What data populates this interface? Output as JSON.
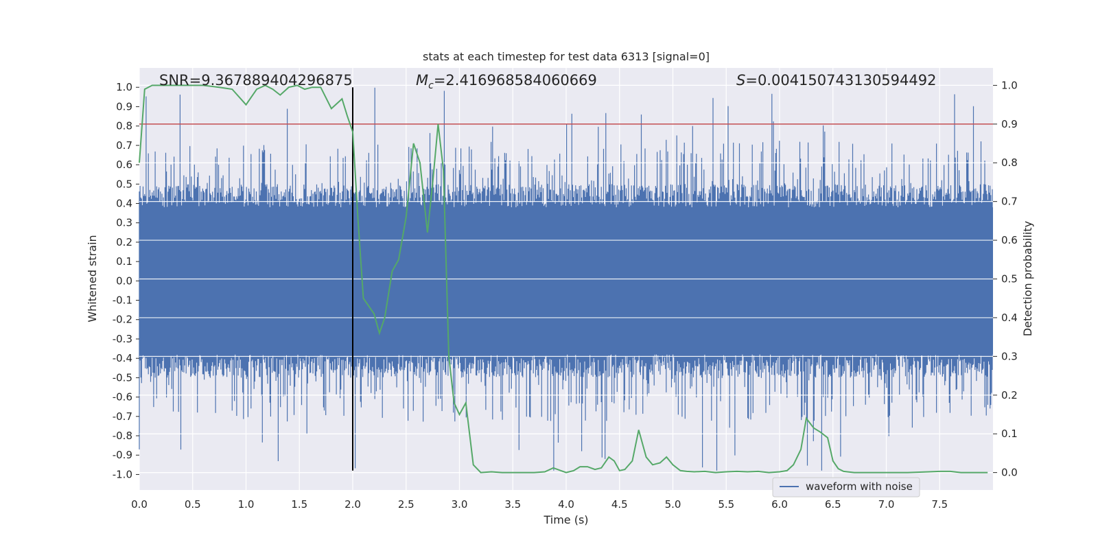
{
  "chart_data": {
    "type": "line",
    "title": "stats at each timestep for test data 6313 [signal=0]",
    "xlabel": "Time (s)",
    "ylabel": "Whitened strain",
    "y2label": "Detection probability",
    "xlim": [
      0,
      8.0
    ],
    "ylim": [
      -1.08,
      1.1
    ],
    "y2lim": [
      -0.045,
      1.045
    ],
    "xticks": [
      "0.0",
      "0.5",
      "1.0",
      "1.5",
      "2.0",
      "2.5",
      "3.0",
      "3.5",
      "4.0",
      "4.5",
      "5.0",
      "5.5",
      "6.0",
      "6.5",
      "7.0",
      "7.5"
    ],
    "yticks": [
      "1.0",
      "0.9",
      "0.8",
      "0.7",
      "0.6",
      "0.5",
      "0.4",
      "0.3",
      "0.2",
      "0.1",
      "0.0",
      "-0.1",
      "-0.2",
      "-0.3",
      "-0.4",
      "-0.5",
      "-0.6",
      "-0.7",
      "-0.8",
      "-0.9",
      "-1.0"
    ],
    "y2ticks": [
      "1.0",
      "0.9",
      "0.8",
      "0.7",
      "0.6",
      "0.5",
      "0.4",
      "0.3",
      "0.2",
      "0.1",
      "0.0"
    ],
    "annotations": {
      "snr": "SNR=9.367889404296875",
      "mc_symbol": "M",
      "mc_sub": "c",
      "mc_value": "=2.416968584060669",
      "s_symbol": "S",
      "s_value": "=0.004150743130594492"
    },
    "threshold_line": {
      "y2": 0.9,
      "color": "#c44e52"
    },
    "marker_line": {
      "x": 2.0,
      "y_range": [
        -0.98,
        1.0
      ],
      "color": "#000000"
    },
    "series": [
      {
        "name": "waveform with noise",
        "axis": "left",
        "color": "#4c72b0",
        "description": "dense noise, core band about ±0.4, spikes up to ±1.0"
      },
      {
        "name": "detection probability",
        "axis": "right",
        "color": "#55a868",
        "x": [
          0.0,
          0.05,
          0.12,
          0.25,
          0.4,
          0.6,
          0.75,
          0.87,
          1.0,
          1.1,
          1.18,
          1.25,
          1.32,
          1.4,
          1.48,
          1.55,
          1.62,
          1.7,
          1.8,
          1.9,
          1.95,
          2.0,
          2.05,
          2.1,
          2.15,
          2.2,
          2.25,
          2.3,
          2.37,
          2.43,
          2.5,
          2.57,
          2.63,
          2.7,
          2.75,
          2.8,
          2.85,
          2.9,
          2.95,
          3.0,
          3.06,
          3.13,
          3.2,
          3.3,
          3.4,
          3.5,
          3.6,
          3.7,
          3.8,
          3.88,
          3.95,
          4.0,
          4.07,
          4.13,
          4.2,
          4.27,
          4.33,
          4.4,
          4.45,
          4.5,
          4.55,
          4.62,
          4.68,
          4.75,
          4.81,
          4.88,
          4.94,
          5.0,
          5.07,
          5.13,
          5.2,
          5.3,
          5.4,
          5.5,
          5.6,
          5.7,
          5.8,
          5.9,
          6.0,
          6.07,
          6.13,
          6.2,
          6.25,
          6.32,
          6.38,
          6.45,
          6.5,
          6.55,
          6.6,
          6.7,
          6.8,
          7.0,
          7.2,
          7.4,
          7.5,
          7.6,
          7.7,
          7.8,
          7.95
        ],
        "values": [
          0.8,
          0.99,
          1.0,
          1.0,
          1.0,
          1.0,
          0.995,
          0.99,
          0.95,
          0.99,
          1.0,
          0.99,
          0.975,
          0.995,
          1.0,
          0.99,
          0.995,
          0.995,
          0.94,
          0.965,
          0.92,
          0.88,
          0.65,
          0.45,
          0.43,
          0.41,
          0.36,
          0.4,
          0.52,
          0.55,
          0.66,
          0.85,
          0.8,
          0.62,
          0.75,
          0.9,
          0.78,
          0.3,
          0.18,
          0.15,
          0.18,
          0.02,
          0.0,
          0.002,
          0.0,
          0.0,
          0.0,
          0.0,
          0.002,
          0.012,
          0.005,
          0.0,
          0.005,
          0.015,
          0.015,
          0.008,
          0.012,
          0.04,
          0.03,
          0.005,
          0.008,
          0.03,
          0.11,
          0.04,
          0.02,
          0.025,
          0.04,
          0.02,
          0.005,
          0.003,
          0.002,
          0.003,
          0.0,
          0.002,
          0.003,
          0.002,
          0.003,
          0.0,
          0.002,
          0.005,
          0.02,
          0.06,
          0.14,
          0.115,
          0.105,
          0.09,
          0.03,
          0.01,
          0.003,
          0.0,
          0.0,
          0.0,
          0.0,
          0.002,
          0.003,
          0.003,
          0.0,
          0.0,
          0.0
        ]
      }
    ],
    "legend": {
      "label": "waveform with noise",
      "placement": "lower-right"
    }
  }
}
